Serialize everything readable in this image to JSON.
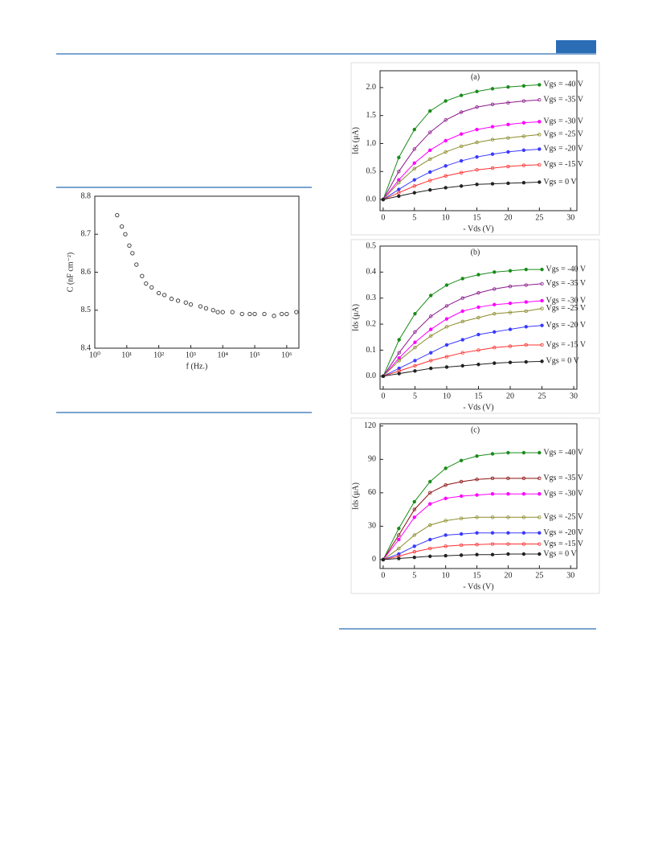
{
  "chart_data": [
    {
      "type": "scatter",
      "xlabel": "f (Hz.)",
      "ylabel": "C (nF cm⁻²)",
      "log_x": true,
      "color": "#333333",
      "x": [
        5,
        7,
        9,
        12,
        15,
        20,
        30,
        40,
        60,
        100,
        150,
        250,
        400,
        700,
        1000,
        2000,
        3000,
        5000,
        7000,
        10000,
        20000,
        40000,
        70000,
        100000,
        200000,
        400000,
        700000,
        1000000,
        2000000
      ],
      "values": [
        8.75,
        8.72,
        8.7,
        8.67,
        8.65,
        8.62,
        8.59,
        8.57,
        8.56,
        8.545,
        8.54,
        8.53,
        8.525,
        8.52,
        8.515,
        8.51,
        8.505,
        8.5,
        8.495,
        8.495,
        8.495,
        8.49,
        8.49,
        8.49,
        8.49,
        8.485,
        8.49,
        8.49,
        8.495
      ],
      "xlim": [
        1,
        2400000
      ],
      "xticks": [
        {
          "value": 1,
          "label": "10⁰"
        },
        {
          "value": 10,
          "label": "10¹"
        },
        {
          "value": 100,
          "label": "10²"
        },
        {
          "value": 1000,
          "label": "10³"
        },
        {
          "value": 10000,
          "label": "10⁴"
        },
        {
          "value": 100000,
          "label": "10⁵"
        },
        {
          "value": 1000000,
          "label": "10⁶"
        }
      ],
      "ylim": [
        8.4,
        8.8
      ],
      "yticks": [
        8.4,
        8.5,
        8.6,
        8.7,
        8.8
      ]
    },
    {
      "type": "line",
      "title": "(a)",
      "xlabel": "- Vds (V)",
      "ylabel": "Ids (μA)",
      "x": [
        0,
        2.5,
        5,
        7.5,
        10,
        12.5,
        15,
        17.5,
        20,
        22.5,
        25
      ],
      "xlim": [
        -0.5,
        31
      ],
      "xticks": [
        0,
        5,
        10,
        15,
        20,
        25,
        30
      ],
      "ylim": [
        -0.2,
        2.3
      ],
      "yticks": [
        {
          "value": 0,
          "label": "0.0"
        },
        0.5,
        {
          "value": 1,
          "label": "1.0"
        },
        1.5,
        {
          "value": 2,
          "label": "2.0"
        }
      ],
      "series": [
        {
          "name": "Vgs = -40 V",
          "color": "#1a8c1a",
          "values": [
            0,
            0.75,
            1.25,
            1.58,
            1.76,
            1.86,
            1.93,
            1.98,
            2.01,
            2.03,
            2.05
          ]
        },
        {
          "name": "Vgs = -35 V",
          "color": "#8b1a8b",
          "values": [
            0,
            0.5,
            0.9,
            1.2,
            1.42,
            1.56,
            1.65,
            1.7,
            1.73,
            1.76,
            1.78
          ]
        },
        {
          "name": "Vgs = -30 V",
          "color": "#ff00ff",
          "values": [
            0,
            0.35,
            0.65,
            0.88,
            1.05,
            1.17,
            1.25,
            1.3,
            1.34,
            1.37,
            1.39
          ]
        },
        {
          "name": "Vgs = -25 V",
          "color": "#8b8b2a",
          "values": [
            0,
            0.3,
            0.55,
            0.72,
            0.85,
            0.95,
            1.02,
            1.07,
            1.1,
            1.13,
            1.16
          ]
        },
        {
          "name": "Vgs = -20 V",
          "color": "#3a3aff",
          "values": [
            0,
            0.18,
            0.35,
            0.49,
            0.6,
            0.69,
            0.76,
            0.81,
            0.85,
            0.88,
            0.9
          ]
        },
        {
          "name": "Vgs = -15 V",
          "color": "#ff3030",
          "values": [
            0,
            0.12,
            0.24,
            0.34,
            0.42,
            0.48,
            0.53,
            0.56,
            0.59,
            0.61,
            0.62
          ]
        },
        {
          "name": "Vgs = 0 V",
          "color": "#222222",
          "values": [
            0,
            0.06,
            0.12,
            0.17,
            0.21,
            0.24,
            0.27,
            0.28,
            0.29,
            0.3,
            0.31
          ]
        }
      ]
    },
    {
      "type": "line",
      "title": "(b)",
      "xlabel": "- Vds (V)",
      "ylabel": "Ids (μA)",
      "x": [
        0,
        2.5,
        5,
        7.5,
        10,
        12.5,
        15,
        17.5,
        20,
        22.5,
        25
      ],
      "xlim": [
        -0.5,
        30.5
      ],
      "xticks": [
        0,
        5,
        10,
        15,
        20,
        25,
        30
      ],
      "ylim": [
        -0.05,
        0.5
      ],
      "yticks": [
        {
          "value": 0,
          "label": "0.0"
        },
        0.1,
        0.2,
        0.3,
        0.4,
        0.5
      ],
      "series": [
        {
          "name": "Vgs = -40 V",
          "color": "#1a8c1a",
          "values": [
            0,
            0.14,
            0.24,
            0.31,
            0.35,
            0.375,
            0.39,
            0.4,
            0.405,
            0.41,
            0.41
          ]
        },
        {
          "name": "Vgs = -35 V",
          "color": "#8b1a8b",
          "values": [
            0,
            0.09,
            0.17,
            0.23,
            0.27,
            0.3,
            0.32,
            0.335,
            0.345,
            0.35,
            0.355
          ]
        },
        {
          "name": "Vgs = -30 V",
          "color": "#ff00ff",
          "values": [
            0,
            0.07,
            0.13,
            0.18,
            0.22,
            0.25,
            0.265,
            0.275,
            0.28,
            0.285,
            0.29
          ]
        },
        {
          "name": "Vgs = -25 V",
          "color": "#8b8b2a",
          "values": [
            0,
            0.06,
            0.11,
            0.155,
            0.19,
            0.21,
            0.225,
            0.24,
            0.245,
            0.25,
            0.26
          ]
        },
        {
          "name": "Vgs = -20 V",
          "color": "#3a3aff",
          "values": [
            0,
            0.03,
            0.06,
            0.09,
            0.12,
            0.14,
            0.16,
            0.17,
            0.18,
            0.19,
            0.195
          ]
        },
        {
          "name": "Vgs = -15 V",
          "color": "#ff3030",
          "values": [
            0,
            0.02,
            0.04,
            0.06,
            0.075,
            0.09,
            0.1,
            0.11,
            0.115,
            0.12,
            0.12
          ]
        },
        {
          "name": "Vgs = 0 V",
          "color": "#222222",
          "values": [
            0,
            0.01,
            0.02,
            0.03,
            0.035,
            0.04,
            0.045,
            0.05,
            0.053,
            0.055,
            0.057
          ]
        }
      ]
    },
    {
      "type": "line",
      "title": "(c)",
      "xlabel": "- Vds (V)",
      "ylabel": "Ids (μA)",
      "x": [
        0,
        2.5,
        5,
        7.5,
        10,
        12.5,
        15,
        17.5,
        20,
        22.5,
        25
      ],
      "xlim": [
        -0.5,
        31
      ],
      "xticks": [
        0,
        5,
        10,
        15,
        20,
        25,
        30
      ],
      "ylim": [
        -8,
        122
      ],
      "yticks": [
        0,
        30,
        60,
        90,
        120
      ],
      "series": [
        {
          "name": "Vgs = -40 V",
          "color": "#1a8c1a",
          "values": [
            0,
            28,
            52,
            70,
            82,
            89,
            93,
            95,
            96,
            96,
            96
          ]
        },
        {
          "name": "Vgs = -35 V",
          "color": "#8b1010",
          "values": [
            0,
            22,
            45,
            60,
            67,
            70,
            72,
            73,
            73,
            73,
            73
          ]
        },
        {
          "name": "Vgs = -30 V",
          "color": "#ff00ff",
          "values": [
            0,
            18,
            38,
            50,
            55,
            57,
            58,
            59,
            59,
            59,
            59
          ]
        },
        {
          "name": "Vgs = -25 V",
          "color": "#8b8b2a",
          "values": [
            0,
            10,
            22,
            31,
            35,
            37,
            38,
            38,
            38,
            38,
            38
          ]
        },
        {
          "name": "Vgs = -20 V",
          "color": "#3a3aff",
          "values": [
            0,
            5,
            12,
            18,
            22,
            23,
            24,
            24,
            24,
            24,
            24
          ]
        },
        {
          "name": "Vgs = -15 V",
          "color": "#ff3030",
          "values": [
            0,
            3,
            7,
            10,
            12,
            13,
            13.5,
            14,
            14,
            14,
            14
          ]
        },
        {
          "name": "Vgs = 0 V",
          "color": "#222222",
          "values": [
            0,
            1,
            2,
            3,
            3.5,
            4,
            4.5,
            4.5,
            5,
            5,
            5
          ]
        }
      ]
    }
  ]
}
